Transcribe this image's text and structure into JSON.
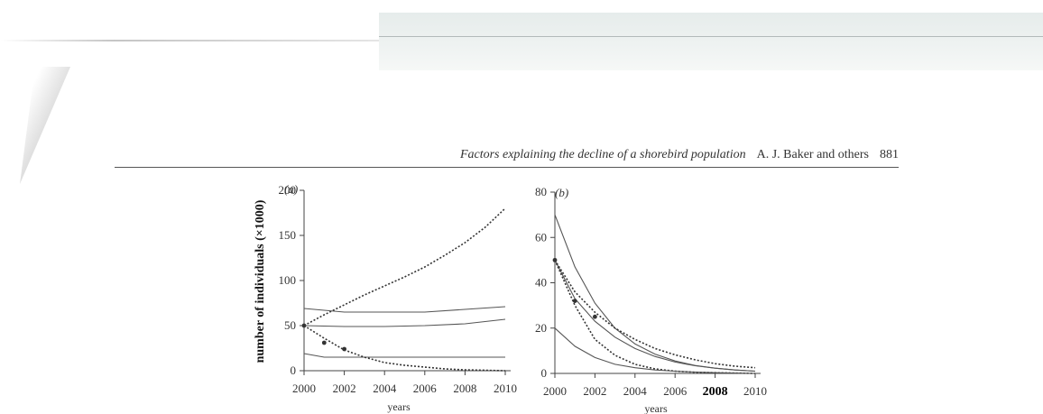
{
  "header": {
    "title": "Factors explaining the decline of a shorebird population",
    "authors": "A. J. Baker and others",
    "page_number": "881"
  },
  "chart_data": [
    {
      "type": "line",
      "panel_label": "(a)",
      "xlabel": "years",
      "ylabel": "number of individuals (×1000)",
      "xlim": [
        2000,
        2010
      ],
      "ylim": [
        0,
        200
      ],
      "x_ticks": [
        "2000",
        "2002",
        "2004",
        "2006",
        "2008",
        "2010"
      ],
      "y_ticks": [
        "0",
        "50",
        "100",
        "150",
        "200"
      ],
      "series": [
        {
          "style": "dotted",
          "x": [
            2000,
            2001,
            2002,
            2003,
            2004,
            2005,
            2006,
            2007,
            2008,
            2009,
            2010
          ],
          "values": [
            50,
            62,
            73,
            84,
            94,
            104,
            115,
            128,
            142,
            159,
            180
          ]
        },
        {
          "style": "solid",
          "x": [
            2000,
            2002,
            2004,
            2006,
            2008,
            2010
          ],
          "values": [
            69,
            65,
            65,
            65,
            68,
            71
          ]
        },
        {
          "style": "solid",
          "x": [
            2000,
            2002,
            2004,
            2006,
            2008,
            2010
          ],
          "values": [
            50,
            49,
            49,
            50,
            52,
            57
          ]
        },
        {
          "style": "solid",
          "x": [
            2000,
            2001,
            2002,
            2004,
            2006,
            2008,
            2010
          ],
          "values": [
            19,
            15,
            15,
            15,
            15,
            15,
            15
          ]
        },
        {
          "style": "dotted",
          "x": [
            2000,
            2001,
            2002,
            2003,
            2004,
            2005,
            2006,
            2007,
            2008,
            2010
          ],
          "values": [
            50,
            36,
            23,
            15,
            9,
            6,
            4,
            2,
            1,
            0
          ]
        }
      ],
      "points": [
        {
          "x": 2000,
          "y": 50
        },
        {
          "x": 2001,
          "y": 31
        },
        {
          "x": 2002,
          "y": 24
        }
      ]
    },
    {
      "type": "line",
      "panel_label": "(b)",
      "xlabel": "years",
      "ylabel": "",
      "xlim": [
        2000,
        2010
      ],
      "ylim": [
        0,
        80
      ],
      "x_ticks": [
        "2000",
        "2002",
        "2004",
        "2006",
        "2008",
        "2010"
      ],
      "bold_x_tick": "2008",
      "y_ticks": [
        "0",
        "20",
        "40",
        "60",
        "80"
      ],
      "series": [
        {
          "style": "solid",
          "x": [
            2000,
            2001,
            2002,
            2003,
            2004,
            2005,
            2006,
            2007,
            2008,
            2009,
            2010
          ],
          "values": [
            70,
            47,
            31,
            20,
            13,
            8.5,
            5.5,
            3.5,
            2.3,
            1.5,
            1
          ]
        },
        {
          "style": "dotted",
          "x": [
            2000,
            2001,
            2002,
            2003,
            2004,
            2005,
            2006,
            2007,
            2008,
            2009,
            2010
          ],
          "values": [
            50,
            36,
            27,
            20,
            15,
            11,
            8.2,
            6,
            4.3,
            3.2,
            2.5
          ]
        },
        {
          "style": "solid",
          "x": [
            2000,
            2001,
            2002,
            2003,
            2004,
            2005,
            2006,
            2007,
            2008,
            2009,
            2010
          ],
          "values": [
            50,
            33,
            23,
            16,
            11,
            7.5,
            5,
            3.4,
            2.3,
            1.5,
            1
          ]
        },
        {
          "style": "dotted",
          "x": [
            2000,
            2001,
            2002,
            2003,
            2004,
            2005,
            2006,
            2007,
            2008,
            2010
          ],
          "values": [
            50,
            30,
            15,
            8,
            4,
            2,
            1,
            0.5,
            0.3,
            0
          ]
        },
        {
          "style": "solid",
          "x": [
            2000,
            2001,
            2002,
            2003,
            2004,
            2005,
            2006,
            2007,
            2008,
            2010
          ],
          "values": [
            20,
            12,
            7,
            4,
            2.5,
            1.5,
            1,
            0.6,
            0.3,
            0
          ]
        }
      ],
      "points": [
        {
          "x": 2000,
          "y": 50
        },
        {
          "x": 2001,
          "y": 32
        },
        {
          "x": 2002,
          "y": 25
        }
      ]
    }
  ]
}
